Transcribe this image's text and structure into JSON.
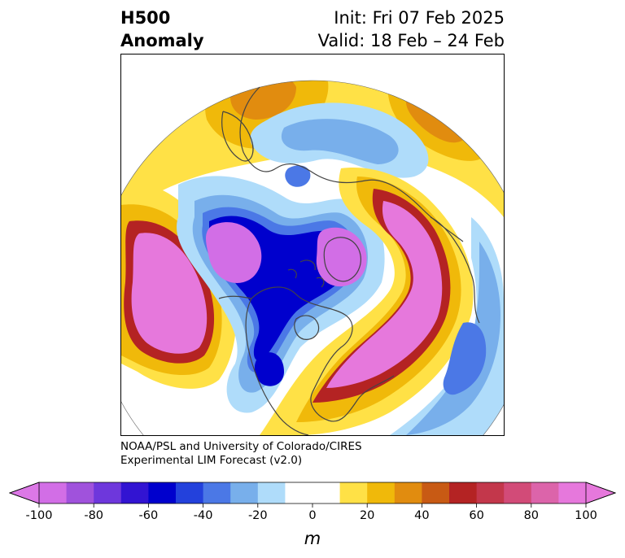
{
  "header": {
    "title_line1": "H500",
    "title_line2": "Anomaly",
    "init": "Init: Fri 07 Feb 2025",
    "valid": "Valid: 18 Feb – 24 Feb"
  },
  "credit": {
    "line1": "NOAA/PSL and University of Colorado/CIRES",
    "line2": "Experimental LIM Forecast (v2.0)"
  },
  "colorbar": {
    "unit": "m",
    "ticks": [
      "-100",
      "-80",
      "-60",
      "-40",
      "-20",
      "0",
      "20",
      "40",
      "60",
      "80",
      "100"
    ],
    "colors": [
      "#d26ee6",
      "#a052dc",
      "#6e37dc",
      "#3214d2",
      "#0000cd",
      "#2341dc",
      "#4b78e6",
      "#78afeb",
      "#afdcfa",
      "#ffffff",
      "#ffffff",
      "#ffe146",
      "#f0b90a",
      "#e18c0f",
      "#c85a14",
      "#b42323",
      "#c3374b",
      "#d24b78",
      "#dc64aa",
      "#e678dc"
    ],
    "under_color": "#dc78e6",
    "over_color": "#e678dc"
  },
  "map": {
    "projection": "north-polar-stereographic",
    "colors": {
      "purple": "#d26ee6",
      "deep_blue": "#0000cd",
      "blue": "#2341dc",
      "mid_blue": "#4b78e6",
      "light_blue": "#78afeb",
      "pale_blue": "#afdcfa",
      "yellow": "#ffe146",
      "gold": "#f0b90a",
      "orange": "#e18c0f",
      "red": "#b42323",
      "pink": "#e678dc",
      "coast": "#444444"
    }
  }
}
